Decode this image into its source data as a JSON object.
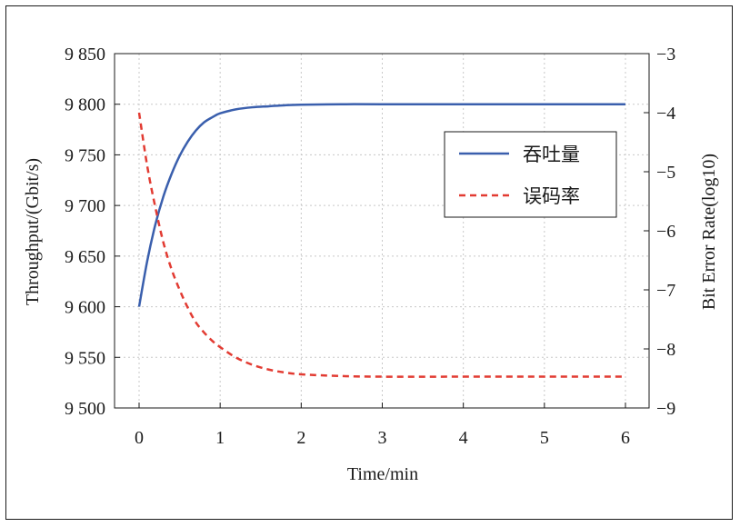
{
  "chart_data": {
    "type": "line",
    "title": "",
    "xlabel": "Time/min",
    "ylabel_left": "Throughput/(Gbit/s)",
    "ylabel_right": "Bit Error Rate(log10)",
    "x_ticks": [
      "0",
      "1",
      "2",
      "3",
      "4",
      "5",
      "6"
    ],
    "y_left_ticks": [
      "9 500",
      "9 550",
      "9 600",
      "9 650",
      "9 700",
      "9 750",
      "9 800",
      "9 850"
    ],
    "y_right_ticks": [
      "−9",
      "−8",
      "−7",
      "−6",
      "−5",
      "−4",
      "−3"
    ],
    "xlim": [
      0,
      6
    ],
    "ylim_left": [
      9500,
      9850
    ],
    "ylim_right": [
      -9,
      -3
    ],
    "grid": true,
    "legend_position": "upper-right",
    "series": [
      {
        "name": "吞吐量",
        "axis": "left",
        "color": "#3a5fad",
        "dash": "solid",
        "x": [
          0,
          0.1,
          0.2,
          0.3,
          0.4,
          0.5,
          0.6,
          0.7,
          0.8,
          0.9,
          1.0,
          1.2,
          1.4,
          1.6,
          1.8,
          2.0,
          2.5,
          3.0,
          4.0,
          5.0,
          6.0
        ],
        "y": [
          9600,
          9645,
          9681,
          9709,
          9731,
          9749,
          9763,
          9774,
          9782,
          9787,
          9791,
          9795,
          9797,
          9798,
          9799,
          9799.5,
          9800,
          9800,
          9800,
          9800,
          9800
        ]
      },
      {
        "name": "误码率",
        "axis": "right",
        "color": "#e23b32",
        "dash": "dashed",
        "x": [
          0,
          0.1,
          0.2,
          0.3,
          0.4,
          0.5,
          0.6,
          0.7,
          0.8,
          0.9,
          1.0,
          1.2,
          1.4,
          1.6,
          1.8,
          2.0,
          2.5,
          3.0,
          4.0,
          5.0,
          6.0
        ],
        "y": [
          -4.0,
          -4.9,
          -5.6,
          -6.2,
          -6.65,
          -7.0,
          -7.3,
          -7.55,
          -7.72,
          -7.86,
          -7.97,
          -8.15,
          -8.27,
          -8.35,
          -8.4,
          -8.43,
          -8.46,
          -8.47,
          -8.47,
          -8.47,
          -8.47
        ]
      }
    ]
  }
}
